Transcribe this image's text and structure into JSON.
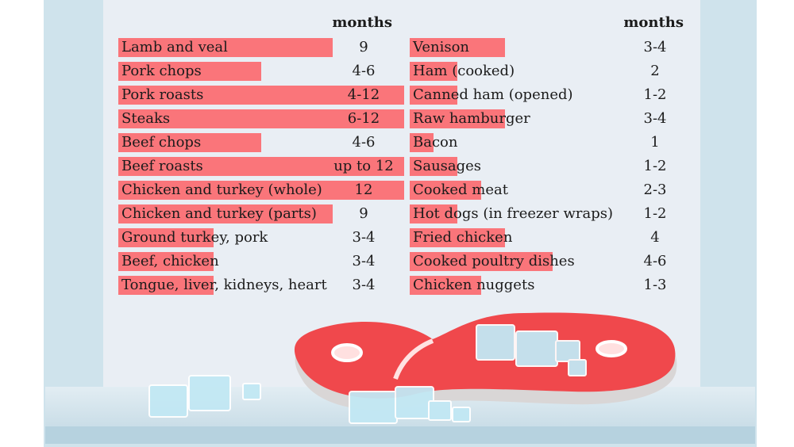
{
  "chart_data": {
    "type": "table",
    "unit_header": "months",
    "columns": [
      {
        "header": "months",
        "rows": [
          {
            "item": "Lamb and veal",
            "months": "9",
            "max_months": 9
          },
          {
            "item": "Pork chops",
            "months": "4-6",
            "max_months": 6
          },
          {
            "item": "Pork roasts",
            "months": "4-12",
            "max_months": 12
          },
          {
            "item": "Steaks",
            "months": "6-12",
            "max_months": 12
          },
          {
            "item": "Beef chops",
            "months": "4-6",
            "max_months": 6
          },
          {
            "item": "Beef roasts",
            "months": "up to 12",
            "max_months": 12
          },
          {
            "item": "Chicken and turkey (whole)",
            "months": "12",
            "max_months": 12
          },
          {
            "item": "Chicken and turkey (parts)",
            "months": "9",
            "max_months": 9
          },
          {
            "item": "Ground turkey, pork",
            "months": "3-4",
            "max_months": 4
          },
          {
            "item": "Beef, chicken",
            "months": "3-4",
            "max_months": 4
          },
          {
            "item": "Tongue, liver, kidneys, heart",
            "months": "3-4",
            "max_months": 4
          }
        ]
      },
      {
        "header": "months",
        "rows": [
          {
            "item": "Venison",
            "months": "3-4",
            "max_months": 4
          },
          {
            "item": "Ham (cooked)",
            "months": "2",
            "max_months": 2
          },
          {
            "item": "Canned ham (opened)",
            "months": "1-2",
            "max_months": 2
          },
          {
            "item": "Raw hamburger",
            "months": "3-4",
            "max_months": 4
          },
          {
            "item": "Bacon",
            "months": "1",
            "max_months": 1
          },
          {
            "item": "Sausages",
            "months": "1-2",
            "max_months": 2
          },
          {
            "item": "Cooked meat",
            "months": "2-3",
            "max_months": 3
          },
          {
            "item": "Hot dogs (in freezer wraps)",
            "months": "1-2",
            "max_months": 2
          },
          {
            "item": "Fried chicken",
            "months": "4",
            "max_months": 4
          },
          {
            "item": "Cooked poultry dishes",
            "months": "4-6",
            "max_months": 6
          },
          {
            "item": "Chicken nuggets",
            "months": "1-3",
            "max_months": 3
          }
        ]
      }
    ],
    "bar_scale_max_months": 12,
    "colors": {
      "bar": "#fb6a6f",
      "meat": "#f0484c",
      "ice": "#bfe6f2"
    }
  }
}
